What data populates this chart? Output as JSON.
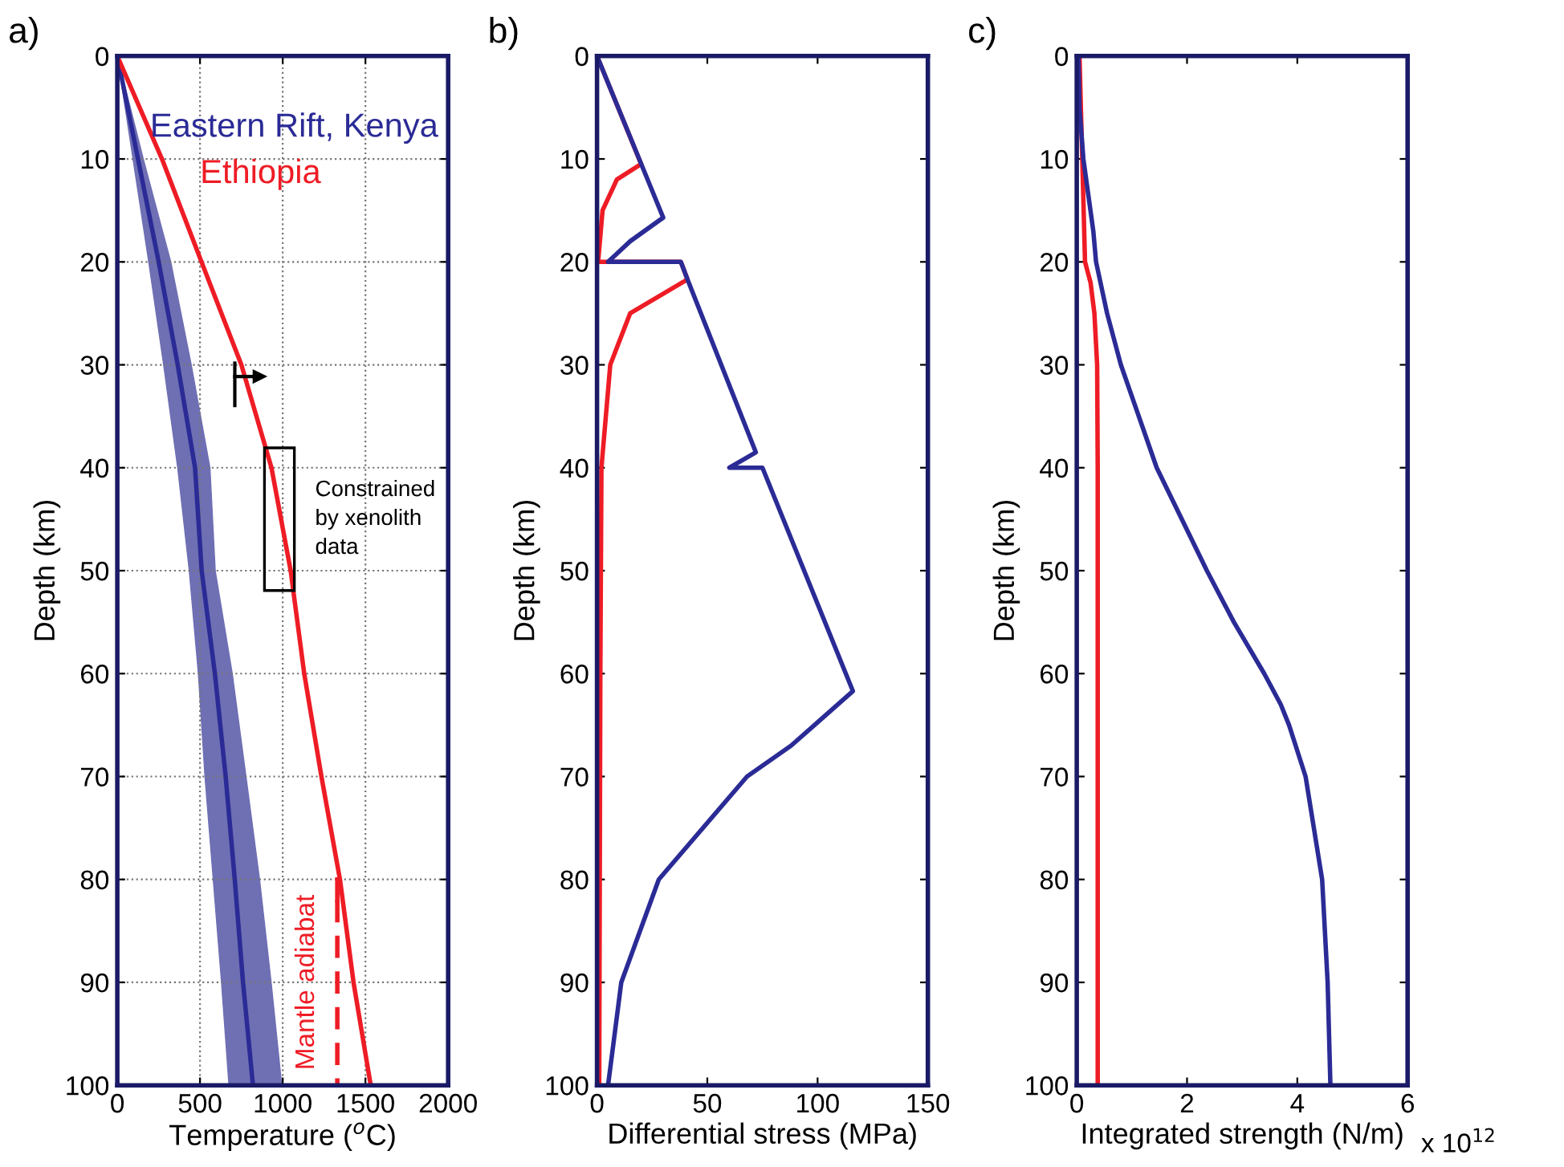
{
  "chart_data": [
    {
      "type": "line",
      "title": "a)",
      "xlabel": "Temperature ($^{o}$C)",
      "ylabel": "Depth (km)",
      "xlim": [
        0,
        2000
      ],
      "xticks": [
        0,
        500,
        1000,
        1500,
        2000
      ],
      "ylim": [
        100,
        0
      ],
      "yticks": [
        0,
        10,
        20,
        30,
        40,
        50,
        60,
        70,
        80,
        90,
        100
      ],
      "grid": true,
      "legend": "top right",
      "series": [
        {
          "type": "area",
          "color": "#6f6fb4",
          "x": [
            0,
            95,
            190,
            280,
            365,
            435,
            490,
            530,
            580,
            630,
            675,
            994,
            930,
            860,
            778,
            695,
            592,
            560,
            447,
            323,
            157,
            0
          ],
          "values": [
            0,
            10,
            20,
            30,
            40,
            50,
            60,
            70,
            80,
            90,
            100,
            100,
            90,
            80,
            70,
            60,
            50,
            40,
            30,
            20,
            10,
            0
          ]
        },
        {
          "name": "Eastern Rift, Kenya",
          "color": "#2b2b96",
          "x": [
            0,
            125,
            250,
            365,
            470,
            510,
            590,
            655,
            710,
            760,
            820
          ],
          "values": [
            0,
            10,
            20,
            30,
            40,
            50,
            60,
            70,
            80,
            90,
            100
          ]
        },
        {
          "name": "Ethiopia",
          "color": "#ee1c25",
          "x": [
            0,
            270,
            509,
            750,
            932,
            1048,
            1130,
            1234,
            1346,
            1428,
            1532
          ],
          "values": [
            0,
            10,
            20,
            30,
            40,
            50,
            60,
            70,
            80,
            90,
            100
          ]
        },
        {
          "color": "#ee1c25",
          "line_style": "dashed",
          "x": [
            1330,
            1330
          ],
          "values": [
            82,
            100
          ]
        },
        {
          "color": "#ee1c25",
          "x": [
            1330,
            1330
          ],
          "values": [
            80,
            82
          ]
        }
      ],
      "annotations": [
        {
          "text": "Constrained\nby xenolith\ndata",
          "x": 980,
          "y": 45
        },
        {
          "text": "Mantle adiabat",
          "x": 1330,
          "y": 90
        }
      ]
    },
    {
      "type": "line",
      "title": "b)",
      "xlabel": "Differential stress (MPa)",
      "ylabel": "Depth (km)",
      "xlim": [
        0,
        150
      ],
      "xticks": [
        0,
        50,
        100,
        150
      ],
      "ylim": [
        100,
        0
      ],
      "yticks": [
        0,
        10,
        20,
        30,
        40,
        50,
        60,
        70,
        80,
        90,
        100
      ],
      "series": [
        {
          "color": "#ee1c25",
          "x": [
            0,
            20,
            9,
            2.5,
            0.5,
            38,
            41,
            15,
            6,
            2,
            1.5,
            1
          ],
          "values": [
            0,
            10.5,
            12,
            15,
            20,
            20,
            21.7,
            25,
            30,
            40,
            60,
            100
          ]
        },
        {
          "color": "#2b2b96",
          "x": [
            0,
            30,
            15,
            5,
            38,
            41,
            72,
            60,
            75,
            116,
            88,
            68,
            28,
            11,
            5
          ],
          "values": [
            0,
            15.7,
            18,
            20,
            20,
            21.7,
            38.5,
            40,
            40,
            61.7,
            67,
            70,
            80,
            90,
            100
          ]
        }
      ]
    },
    {
      "type": "line",
      "title": "c)",
      "xlabel": "Integrated strength (N/m)",
      "ylabel": "Depth (km)",
      "xlim": [
        0,
        6
      ],
      "xticks": [
        0,
        2,
        4,
        6
      ],
      "ylim": [
        100,
        0
      ],
      "yticks": [
        0,
        10,
        20,
        30,
        40,
        50,
        60,
        70,
        80,
        90,
        100
      ],
      "annotations": [
        "x 10$^{12}$"
      ],
      "series": [
        {
          "color": "#ee1c25",
          "x": [
            0.05,
            0.1,
            0.15,
            0.25,
            0.32,
            0.37,
            0.38,
            0.38
          ],
          "values": [
            0,
            10,
            20,
            22,
            25,
            30,
            40,
            100
          ]
        },
        {
          "color": "#2b2b96",
          "x": [
            0.03,
            0.05,
            0.12,
            0.3,
            0.35,
            0.55,
            0.8,
            1.45,
            2.36,
            2.85,
            3.4,
            3.7,
            3.85,
            4.15,
            4.45,
            4.55,
            4.6
          ],
          "values": [
            0,
            5,
            10,
            17,
            20,
            25,
            30,
            40,
            50,
            55,
            60,
            63,
            65,
            70,
            80,
            90,
            100
          ]
        }
      ]
    }
  ]
}
